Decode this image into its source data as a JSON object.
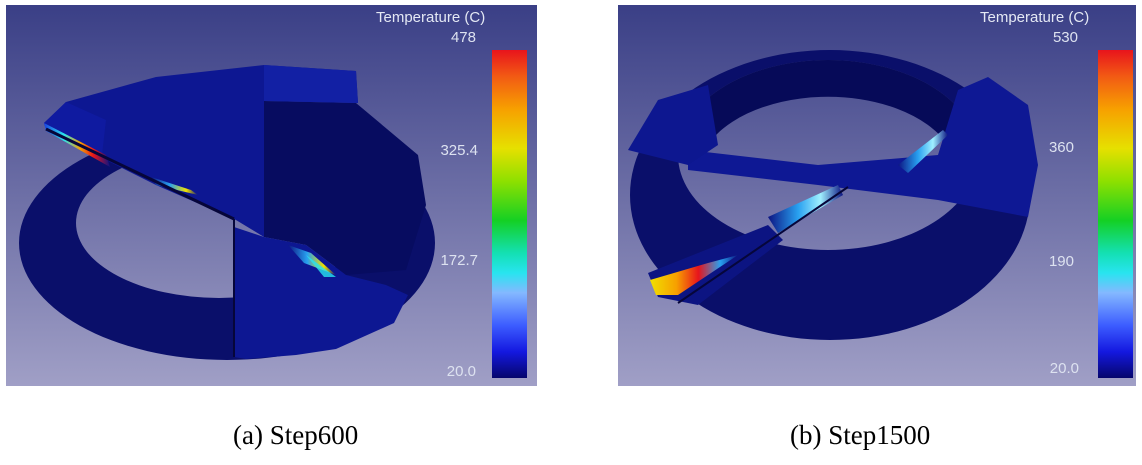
{
  "panels": [
    {
      "legend_title": "Temperature (C)",
      "ticks": [
        "478",
        "325.4",
        "172.7",
        "20.0"
      ],
      "caption": "(a) Step600"
    },
    {
      "legend_title": "Temperature (C)",
      "ticks": [
        "530",
        "360",
        "190",
        "20.0"
      ],
      "caption": "(b) Step1500"
    }
  ],
  "colors": {
    "background_top": "#3a3f86",
    "background_bottom": "#9a9cc4",
    "model_base": "#0c1482",
    "model_dark": "#060a5c",
    "hot": "#e8141c"
  }
}
